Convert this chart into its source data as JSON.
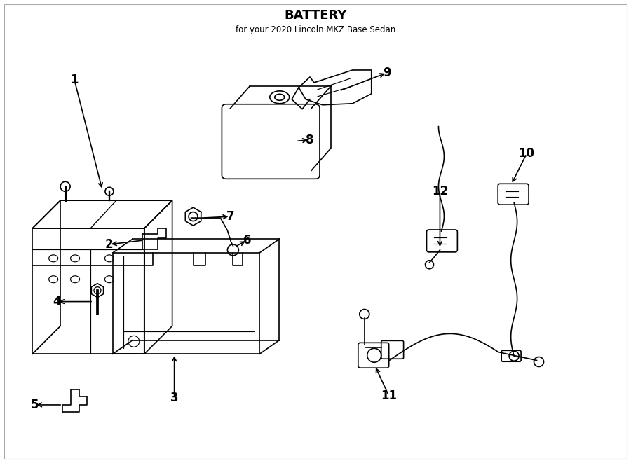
{
  "title": "BATTERY",
  "subtitle": "for your 2020 Lincoln MKZ Base Sedan",
  "bg_color": "#ffffff",
  "line_color": "#000000",
  "text_color": "#000000",
  "fig_width": 9.0,
  "fig_height": 6.61
}
